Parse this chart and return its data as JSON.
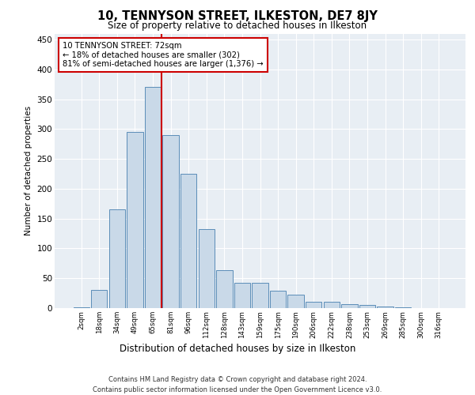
{
  "title_line1": "10, TENNYSON STREET, ILKESTON, DE7 8JY",
  "title_line2": "Size of property relative to detached houses in Ilkeston",
  "xlabel": "Distribution of detached houses by size in Ilkeston",
  "ylabel": "Number of detached properties",
  "categories": [
    "2sqm",
    "18sqm",
    "34sqm",
    "49sqm",
    "65sqm",
    "81sqm",
    "96sqm",
    "112sqm",
    "128sqm",
    "143sqm",
    "159sqm",
    "175sqm",
    "190sqm",
    "206sqm",
    "222sqm",
    "238sqm",
    "253sqm",
    "269sqm",
    "285sqm",
    "300sqm",
    "316sqm"
  ],
  "values": [
    1,
    30,
    165,
    295,
    370,
    290,
    225,
    133,
    63,
    43,
    43,
    29,
    23,
    10,
    11,
    6,
    5,
    2,
    1,
    0,
    0
  ],
  "bar_color": "#c9d9e8",
  "bar_edge_color": "#5b8db8",
  "vline_color": "#cc0000",
  "annotation_text": "10 TENNYSON STREET: 72sqm\n← 18% of detached houses are smaller (302)\n81% of semi-detached houses are larger (1,376) →",
  "annotation_box_color": "#ffffff",
  "annotation_box_edge": "#cc0000",
  "ylim": [
    0,
    460
  ],
  "yticks": [
    0,
    50,
    100,
    150,
    200,
    250,
    300,
    350,
    400,
    450
  ],
  "background_color": "#e8eef4",
  "footer_line1": "Contains HM Land Registry data © Crown copyright and database right 2024.",
  "footer_line2": "Contains public sector information licensed under the Open Government Licence v3.0."
}
